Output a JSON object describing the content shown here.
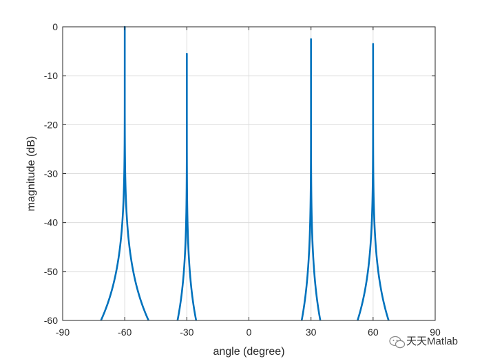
{
  "chart_data": {
    "type": "line",
    "title": "",
    "xlabel": "angle (degree)",
    "ylabel": "magnitude (dB)",
    "xlim": [
      -90,
      90
    ],
    "ylim": [
      -60,
      0
    ],
    "xticks": [
      -90,
      -60,
      -30,
      0,
      30,
      60,
      90
    ],
    "yticks": [
      0,
      -10,
      -20,
      -30,
      -40,
      -50,
      -60
    ],
    "xtick_labels": [
      "-90",
      "-60",
      "-30",
      "0",
      "30",
      "60",
      "90"
    ],
    "ytick_labels": [
      "0",
      "-10",
      "-20",
      "-30",
      "-40",
      "-50",
      "-60"
    ],
    "grid": true,
    "line_color": "#0072BD",
    "peaks": [
      {
        "angle": -60,
        "peak_db": 0,
        "half_width_at_floor": 11.5
      },
      {
        "angle": -30,
        "peak_db": -5.5,
        "half_width_at_floor": 4.5
      },
      {
        "angle": 30,
        "peak_db": -2.5,
        "half_width_at_floor": 4.5
      },
      {
        "angle": 60,
        "peak_db": -3.5,
        "half_width_at_floor": 7.5
      }
    ]
  },
  "watermark": {
    "text": "天天Matlab",
    "icon": "wechat-icon"
  }
}
